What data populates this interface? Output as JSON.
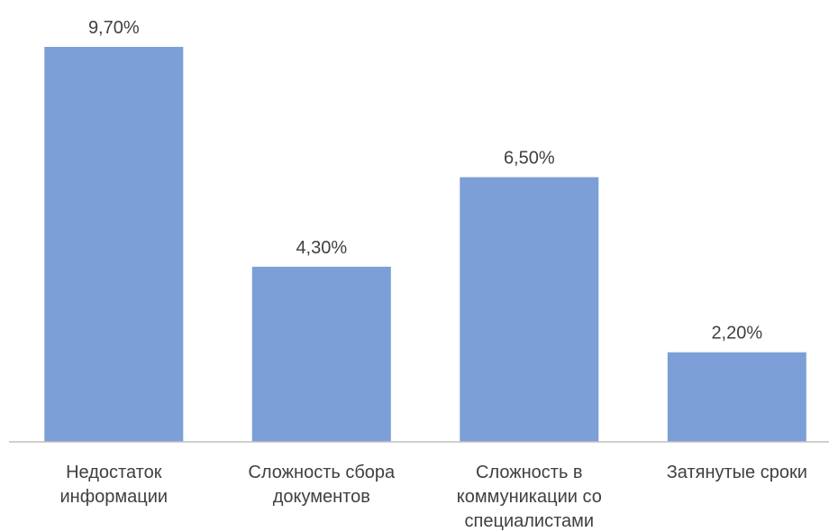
{
  "chart_data": {
    "type": "bar",
    "categories": [
      [
        "Недостаток",
        "информации"
      ],
      [
        "Сложность сбора",
        "документов"
      ],
      [
        "Сложность в",
        "коммуникации со",
        "специалистами"
      ],
      [
        "Затянутые сроки"
      ]
    ],
    "values": [
      9.7,
      4.3,
      6.5,
      2.2
    ],
    "data_labels": [
      "9,70%",
      "4,30%",
      "6,50%",
      "2,20%"
    ],
    "title": "",
    "xlabel": "",
    "ylabel": "",
    "ylim": [
      0,
      9.7
    ],
    "grid": false,
    "legend": "none",
    "colors": {
      "bar": "#7b9fd6",
      "axis": "#bfbfbf",
      "text": "#404040"
    }
  }
}
